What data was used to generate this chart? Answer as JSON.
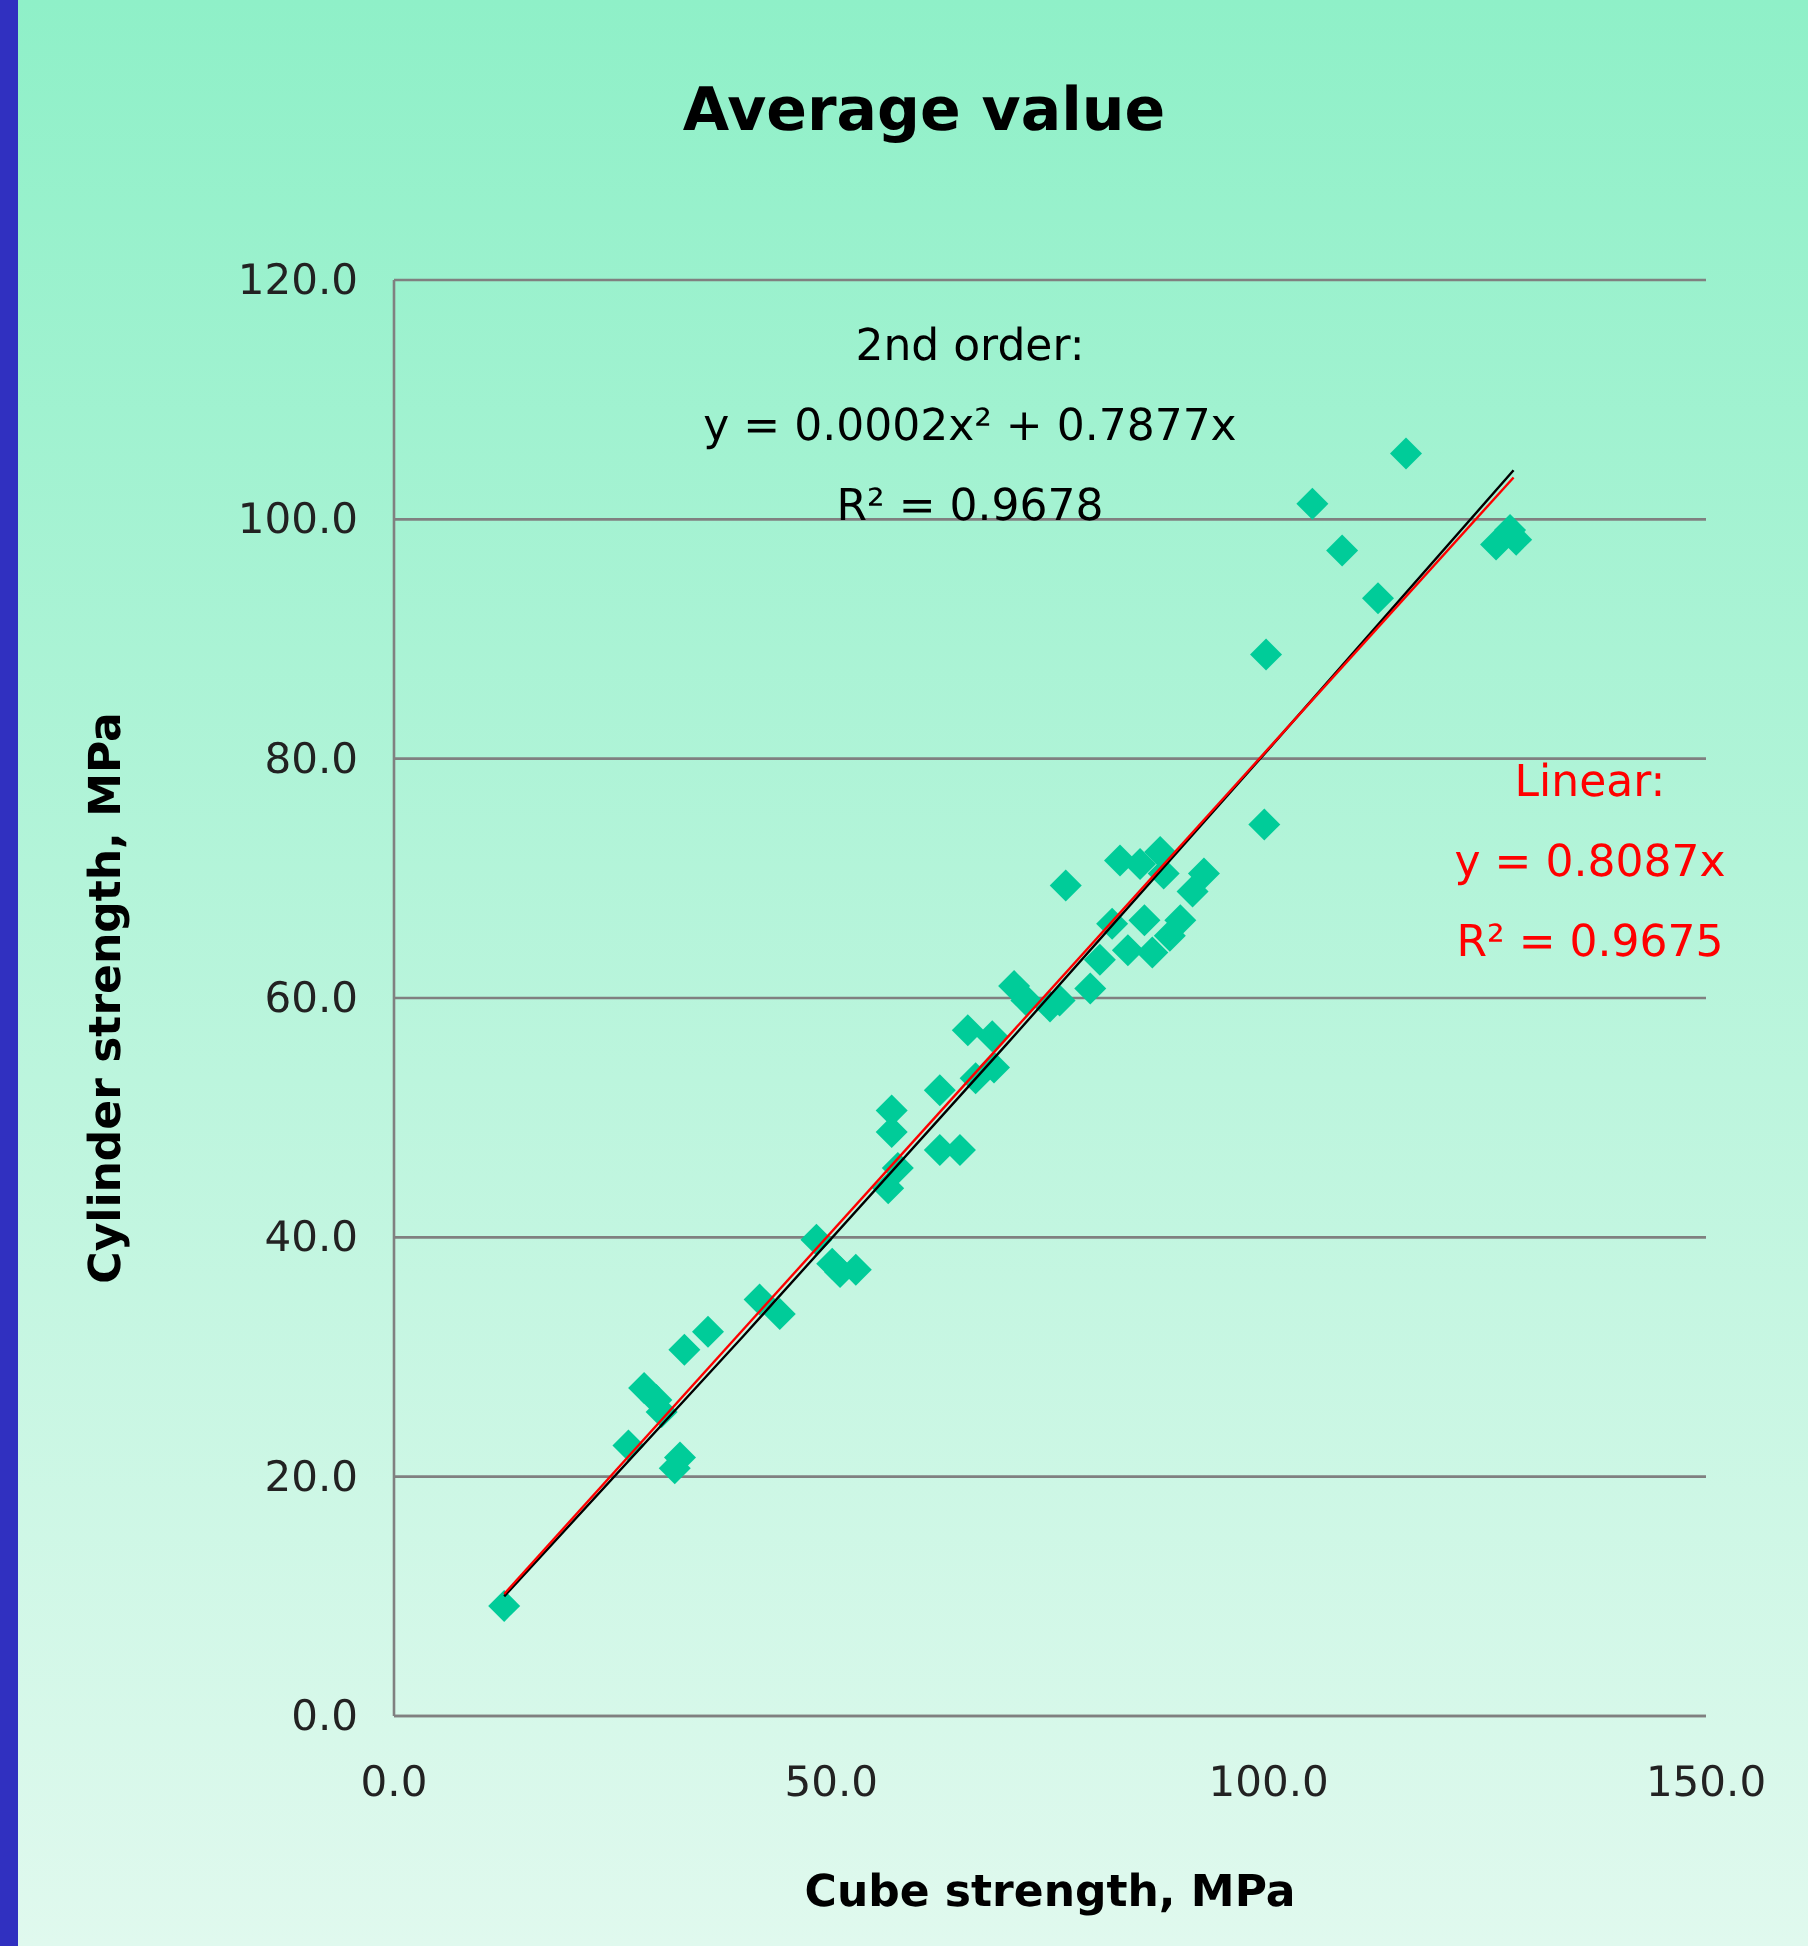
{
  "chart_data": {
    "type": "scatter",
    "title": "Average value",
    "xlabel": "Cube strength, MPa",
    "ylabel": "Cylinder strength, MPa",
    "xlim": [
      0,
      150
    ],
    "ylim": [
      0,
      120
    ],
    "xticks": [
      {
        "value": 0,
        "label": "0.0"
      },
      {
        "value": 50,
        "label": "50.0"
      },
      {
        "value": 100,
        "label": "100.0"
      },
      {
        "value": 150,
        "label": "150.0"
      }
    ],
    "yticks": [
      {
        "value": 0,
        "label": "0.0"
      },
      {
        "value": 20,
        "label": "20.0"
      },
      {
        "value": 40,
        "label": "40.0"
      },
      {
        "value": 60,
        "label": "60.0"
      },
      {
        "value": 80,
        "label": "80.0"
      },
      {
        "value": 100,
        "label": "100.0"
      },
      {
        "value": 120,
        "label": "120.0"
      }
    ],
    "grid": "y",
    "marker": "diamond",
    "series": [
      {
        "color": "#00cc99",
        "x": [
          12.6,
          26.8,
          28.6,
          30.0,
          30.6,
          32.1,
          32.7,
          33.2,
          35.9,
          41.8,
          44.1,
          48.3,
          50.1,
          51.0,
          52.8,
          56.9,
          56.9,
          56.5,
          57.6,
          62.4,
          62.4,
          65.6,
          64.7,
          66.5,
          68.6,
          68.4,
          70.9,
          72.3,
          75.0,
          76.8,
          76.1,
          79.6,
          80.7,
          82.1,
          83.0,
          83.9,
          85.3,
          85.8,
          86.7,
          87.6,
          88.0,
          88.7,
          89.9,
          91.3,
          92.6,
          99.5,
          99.7,
          105.0,
          108.4,
          112.5,
          115.7,
          126.0,
          127.6,
          128.3
        ],
        "values": [
          9.2,
          22.6,
          27.4,
          26.4,
          25.4,
          20.7,
          21.6,
          30.6,
          32.1,
          34.8,
          33.6,
          39.8,
          37.8,
          37.1,
          37.3,
          50.6,
          48.8,
          44.1,
          45.8,
          52.3,
          47.3,
          57.3,
          47.3,
          53.3,
          54.2,
          56.8,
          61.0,
          59.8,
          59.3,
          69.4,
          59.8,
          60.8,
          63.2,
          66.2,
          71.5,
          64.0,
          71.2,
          66.5,
          63.8,
          72.2,
          70.4,
          65.2,
          66.5,
          68.9,
          70.4,
          74.5,
          88.7,
          101.3,
          97.4,
          93.4,
          105.5,
          97.9,
          99.1,
          98.3
        ]
      },
      {
        "type": "line",
        "color": "#000000",
        "x": [
          12.6,
          40,
          70,
          100,
          128
        ],
        "values": [
          10.0,
          31.8,
          56.1,
          80.8,
          104.1
        ],
        "marker": "none"
      },
      {
        "type": "line",
        "color": "#ff0000",
        "x": [
          12.6,
          128
        ],
        "values": [
          10.2,
          103.5
        ],
        "marker": "none"
      }
    ],
    "annotations": [
      "2nd order:",
      "y = 0.0002x² + 0.7877x",
      "R² = 0.9678",
      "Linear:",
      "y = 0.8087x",
      "R² = 0.9675"
    ]
  }
}
